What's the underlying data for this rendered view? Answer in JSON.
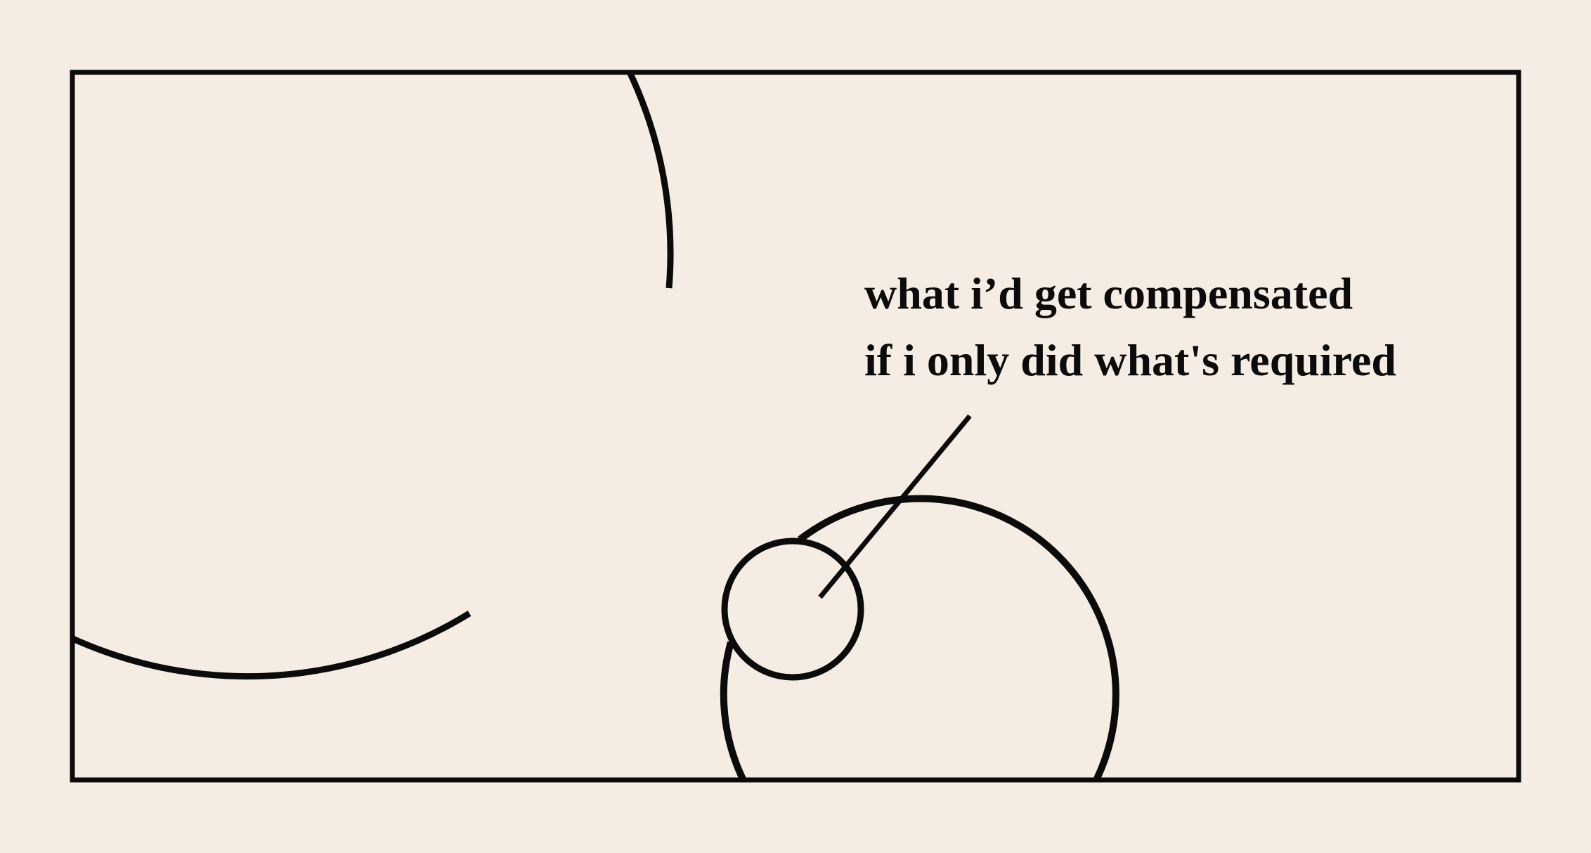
{
  "annotation": {
    "line_1": "what i’d get compensated",
    "line_2": "if i only did what's required"
  },
  "colors": {
    "background": "#f5ede3",
    "stroke": "#0b0b0b"
  }
}
